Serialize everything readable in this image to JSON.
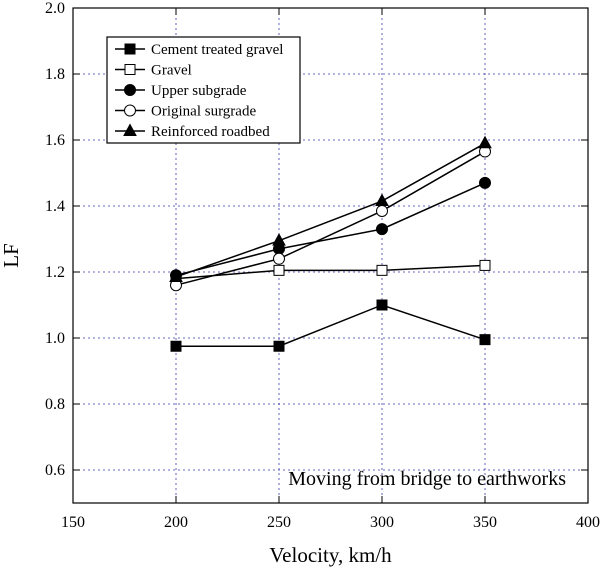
{
  "chart_data": {
    "type": "line",
    "xlabel": "Velocity, km/h",
    "ylabel": "LF",
    "xlim": [
      150,
      400
    ],
    "ylim": [
      0.5,
      2.0
    ],
    "xticks": [
      "150",
      "200",
      "250",
      "300",
      "350",
      "400"
    ],
    "yticks": [
      "0.6",
      "0.8",
      "1.0",
      "1.2",
      "1.4",
      "1.6",
      "1.8",
      "2.0"
    ],
    "grid": true,
    "legend_position": "top-left",
    "annotation": "Moving from bridge to earthworks",
    "x": [
      200,
      250,
      300,
      350
    ],
    "series": [
      {
        "name": "Cement treated gravel",
        "marker": "square-filled",
        "values": [
          0.975,
          0.975,
          1.1,
          0.995
        ]
      },
      {
        "name": "Gravel",
        "marker": "square-open",
        "values": [
          1.18,
          1.205,
          1.205,
          1.22
        ]
      },
      {
        "name": "Upper subgrade",
        "marker": "circle-filled",
        "values": [
          1.19,
          1.27,
          1.33,
          1.47
        ]
      },
      {
        "name": "Original surgrade",
        "marker": "circle-open",
        "values": [
          1.16,
          1.24,
          1.385,
          1.565
        ]
      },
      {
        "name": "Reinforced roadbed",
        "marker": "triangle-filled",
        "values": [
          1.185,
          1.295,
          1.415,
          1.59
        ]
      }
    ]
  }
}
